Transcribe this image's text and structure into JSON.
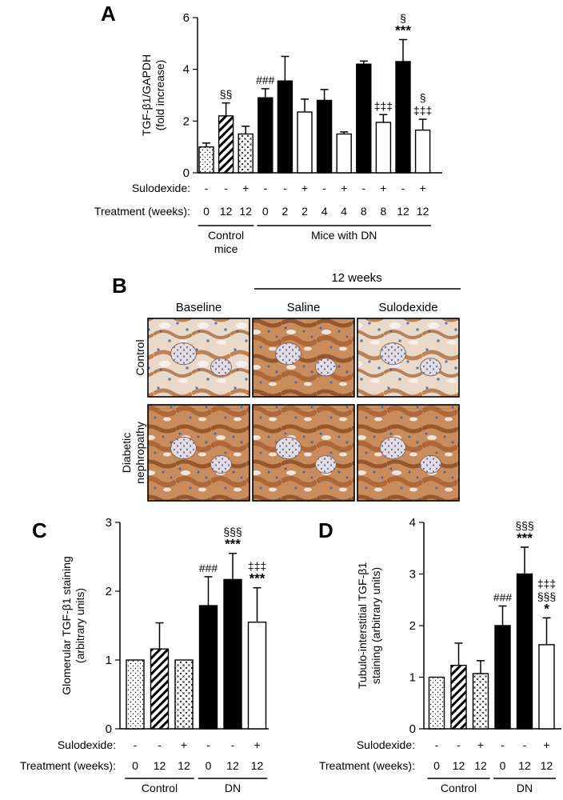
{
  "panel_labels": {
    "A": "A",
    "B": "B",
    "C": "C",
    "D": "D"
  },
  "colors": {
    "black": "#000000",
    "white": "#ffffff",
    "stain": "#b57443",
    "nuclei": "#5a6ea8"
  },
  "chart_data": [
    {
      "id": "A",
      "type": "bar",
      "title": "",
      "ylabel": [
        "TGF-β1/GAPDH",
        "(fold increase)"
      ],
      "ylim": [
        0,
        6
      ],
      "yticks": [
        0,
        2,
        4,
        6
      ],
      "grid": false,
      "legend": "none",
      "row_labels": {
        "sulodexide": "Sulodexide:",
        "treatment": "Treatment (weeks):"
      },
      "sulodexide": [
        "-",
        "-",
        "+",
        "-",
        "-",
        "+",
        "-",
        "+",
        "-",
        "+",
        "-",
        "+"
      ],
      "weeks": [
        "0",
        "12",
        "12",
        "0",
        "2",
        "2",
        "4",
        "4",
        "8",
        "8",
        "12",
        "12"
      ],
      "fills": [
        "dots",
        "hatch",
        "cross",
        "black",
        "black",
        "white",
        "black",
        "white",
        "black",
        "white",
        "black",
        "white"
      ],
      "values": [
        1.0,
        2.2,
        1.5,
        2.9,
        3.55,
        2.35,
        2.8,
        1.5,
        4.2,
        1.95,
        4.3,
        1.65
      ],
      "errors": [
        0.15,
        0.5,
        0.3,
        0.35,
        0.95,
        0.5,
        0.42,
        0.08,
        0.12,
        0.3,
        0.85,
        0.42
      ],
      "annotations": [
        {
          "bar": 1,
          "lines": [
            "§§"
          ]
        },
        {
          "bar": 3,
          "lines": [
            "###"
          ]
        },
        {
          "bar": 9,
          "lines": [
            "‡‡‡"
          ]
        },
        {
          "bar": 10,
          "lines": [
            "§",
            "***"
          ]
        },
        {
          "bar": 11,
          "lines": [
            "§",
            "‡‡‡"
          ]
        }
      ],
      "groups": [
        {
          "from": 0,
          "to": 2,
          "lines": [
            "Control",
            "mice"
          ]
        },
        {
          "from": 3,
          "to": 11,
          "lines": [
            "Mice with DN"
          ]
        }
      ]
    },
    {
      "id": "C",
      "type": "bar",
      "title": "",
      "ylabel": [
        "Glomerular TGF-β1 staining",
        "(arbitrary units)"
      ],
      "ylim": [
        0,
        3
      ],
      "yticks": [
        0,
        1,
        2,
        3
      ],
      "grid": false,
      "legend": "none",
      "row_labels": {
        "sulodexide": "Sulodexide:",
        "treatment": "Treatment (weeks):"
      },
      "sulodexide": [
        "-",
        "-",
        "+",
        "-",
        "-",
        "+"
      ],
      "weeks": [
        "0",
        "12",
        "12",
        "0",
        "12",
        "12"
      ],
      "fills": [
        "dots",
        "hatch",
        "cross",
        "black",
        "black",
        "white"
      ],
      "values": [
        1.0,
        1.16,
        1.0,
        1.79,
        2.17,
        1.55
      ],
      "errors": [
        0.0,
        0.38,
        0.0,
        0.42,
        0.38,
        0.5
      ],
      "annotations": [
        {
          "bar": 3,
          "lines": [
            "###"
          ]
        },
        {
          "bar": 4,
          "lines": [
            "§§§",
            "***"
          ]
        },
        {
          "bar": 5,
          "lines": [
            "‡‡‡",
            "***"
          ]
        }
      ],
      "groups": [
        {
          "from": 0,
          "to": 2,
          "lines": [
            "Control"
          ]
        },
        {
          "from": 3,
          "to": 5,
          "lines": [
            "DN"
          ]
        }
      ]
    },
    {
      "id": "D",
      "type": "bar",
      "title": "",
      "ylabel": [
        "Tubulo-interstitial TGF-β1",
        "staining (arbitrary units)"
      ],
      "ylim": [
        0,
        4
      ],
      "yticks": [
        0,
        1,
        2,
        3,
        4
      ],
      "grid": false,
      "legend": "none",
      "row_labels": {
        "sulodexide": "Sulodexide:",
        "treatment": "Treatment (weeks):"
      },
      "sulodexide": [
        "-",
        "-",
        "+",
        "-",
        "-",
        "+"
      ],
      "weeks": [
        "0",
        "12",
        "12",
        "0",
        "12",
        "12"
      ],
      "fills": [
        "dots",
        "hatch",
        "cross",
        "black",
        "black",
        "white"
      ],
      "values": [
        1.0,
        1.23,
        1.07,
        2.0,
        3.0,
        1.63
      ],
      "errors": [
        0.0,
        0.43,
        0.25,
        0.38,
        0.52,
        0.52
      ],
      "annotations": [
        {
          "bar": 3,
          "lines": [
            "###"
          ]
        },
        {
          "bar": 4,
          "lines": [
            "§§§",
            "***"
          ]
        },
        {
          "bar": 5,
          "lines": [
            "‡‡‡",
            "§§§",
            "*"
          ]
        }
      ],
      "groups": [
        {
          "from": 0,
          "to": 2,
          "lines": [
            "Control"
          ]
        },
        {
          "from": 3,
          "to": 5,
          "lines": [
            "DN"
          ]
        }
      ]
    }
  ],
  "micrographs": {
    "header": "12 weeks",
    "columns": [
      "Baseline",
      "Saline",
      "Sulodexide"
    ],
    "rows": [
      {
        "lines": [
          "Control"
        ]
      },
      {
        "lines": [
          "Diabetic",
          "nephropathy"
        ]
      }
    ]
  }
}
